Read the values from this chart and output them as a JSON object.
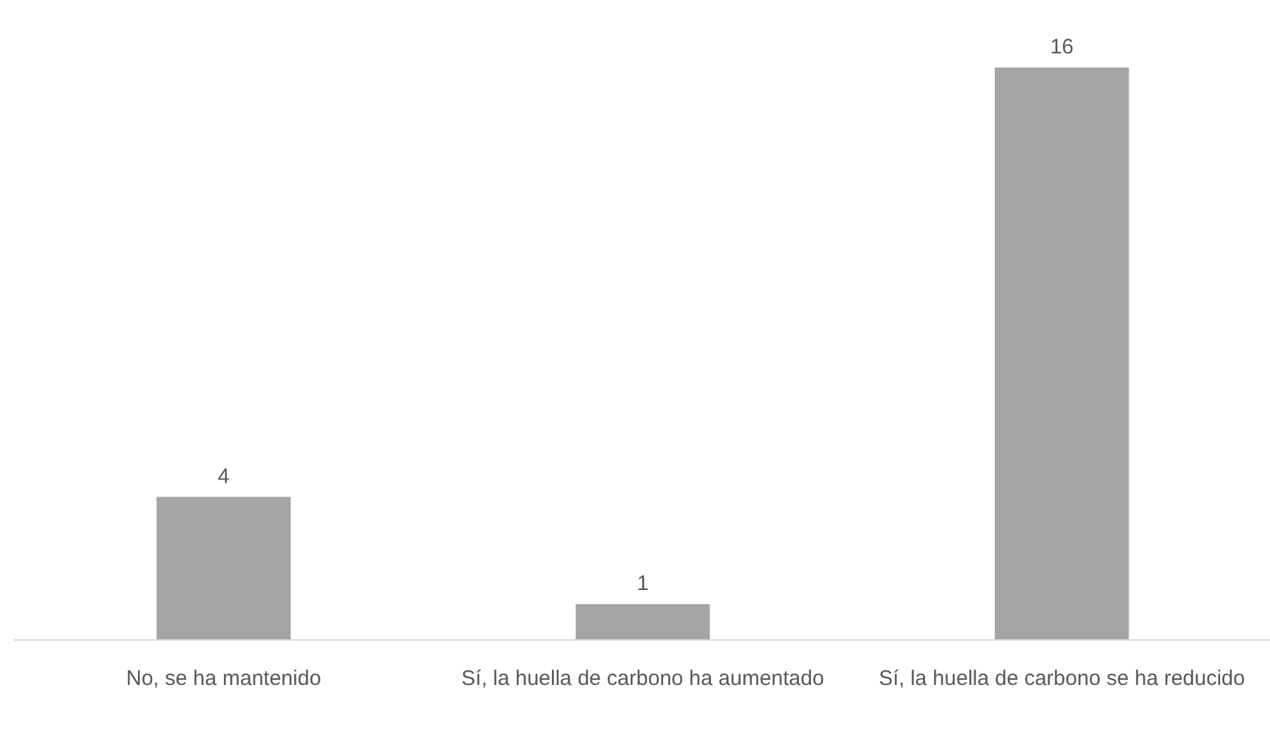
{
  "chart_data": {
    "type": "bar",
    "categories": [
      "No, se ha mantenido",
      "Sí, la huella de carbono ha aumentado",
      "Sí, la huella de carbono se ha reducido"
    ],
    "values": [
      4,
      1,
      16
    ],
    "color": "#a5a5a5",
    "data_labels": true
  }
}
